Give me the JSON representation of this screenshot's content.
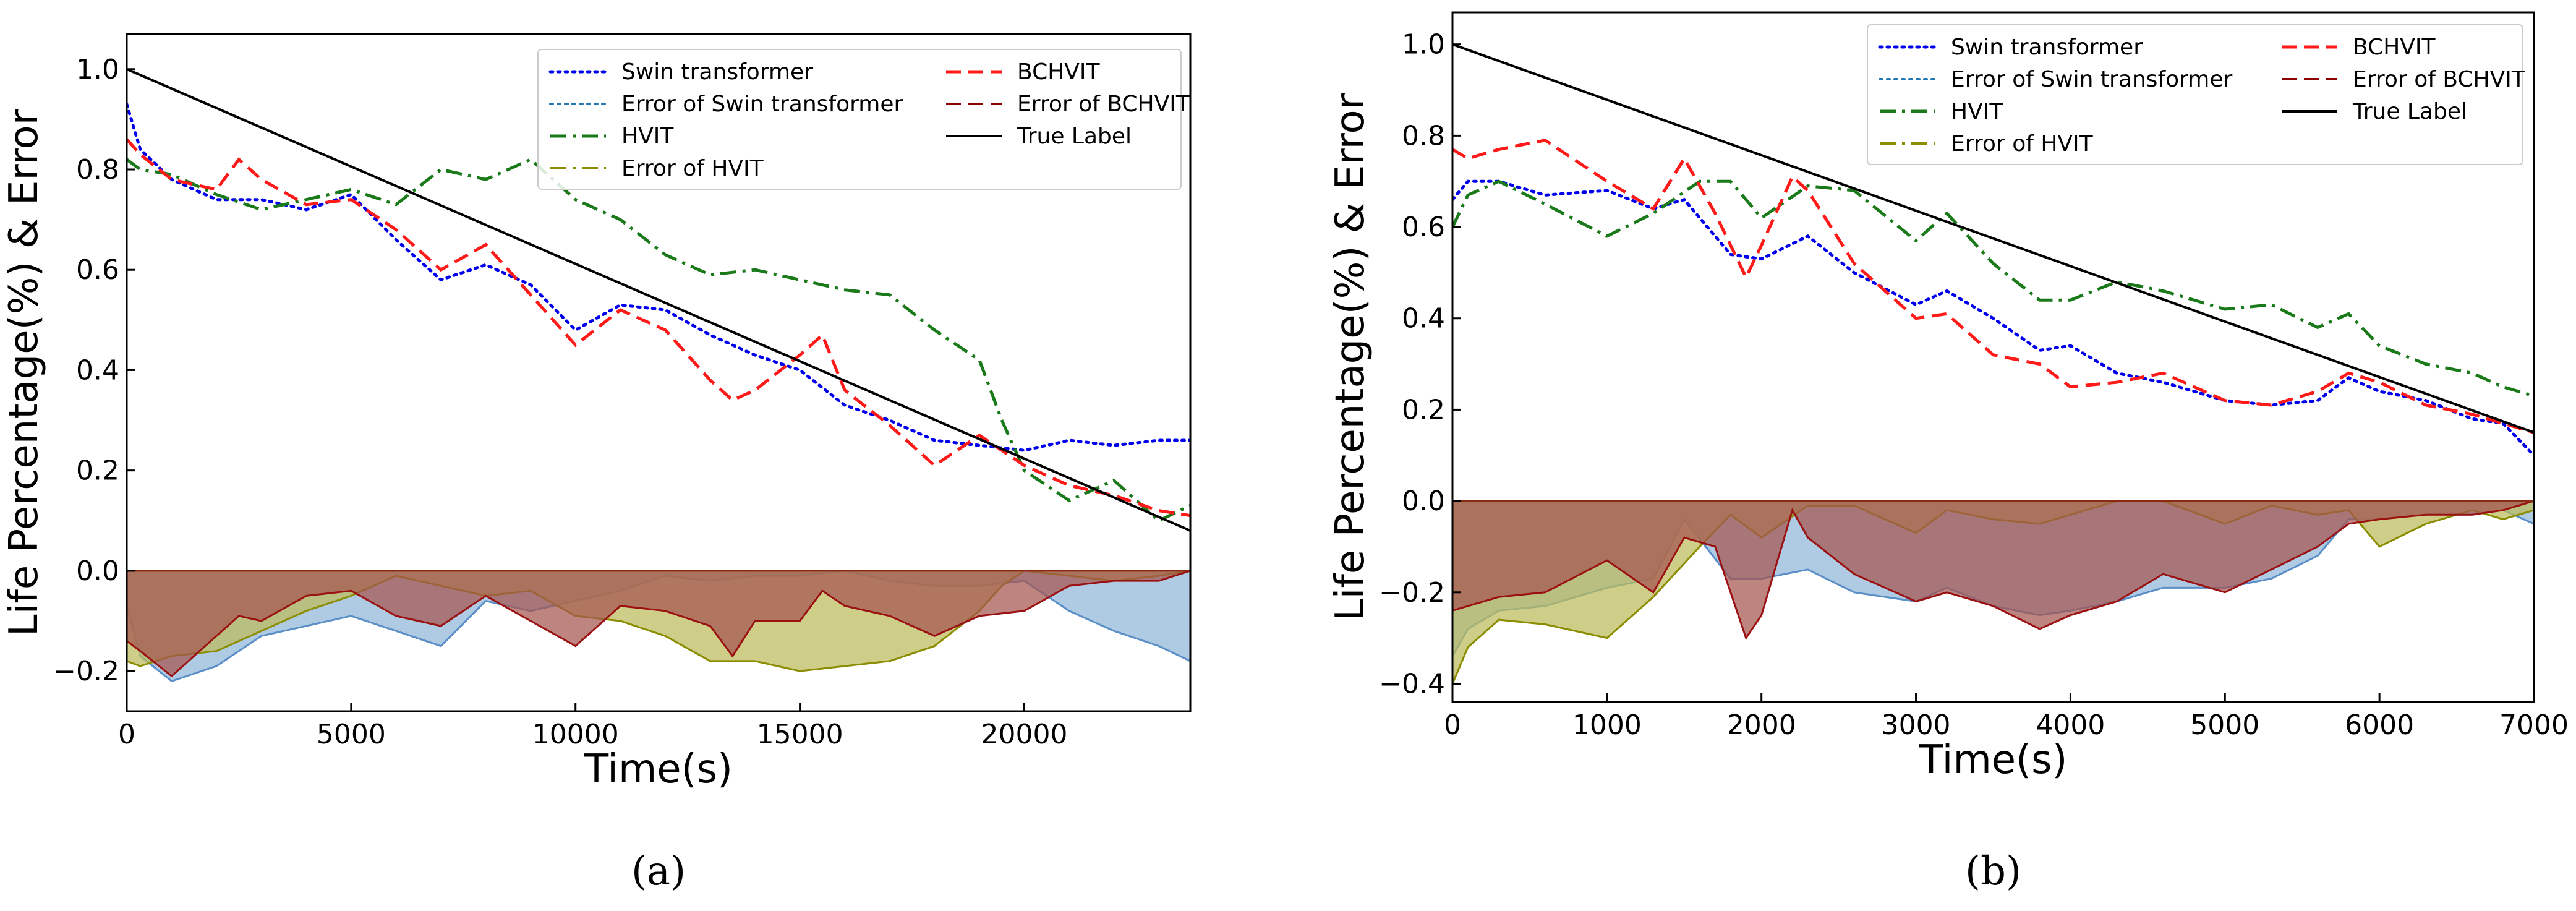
{
  "chart_data": [
    {
      "type": "line",
      "panel_label": "(a)",
      "xlabel": "Time(s)",
      "ylabel": "Life Percentage(%) & Error",
      "xlim": [
        0,
        23700
      ],
      "ylim": [
        -0.28,
        1.07
      ],
      "xticks": [
        0,
        5000,
        10000,
        15000,
        20000
      ],
      "yticks": [
        -0.2,
        0.0,
        0.2,
        0.4,
        0.6,
        0.8,
        1.0
      ],
      "xtick_labels": [
        "0",
        "5000",
        "10000",
        "15000",
        "20000"
      ],
      "ytick_labels": [
        "−0.2",
        "0.0",
        "0.2",
        "0.4",
        "0.6",
        "0.8",
        "1.0"
      ],
      "legend": [
        "Swin transformer",
        " Error of Swin transformer",
        "HVIT",
        " Error of HVIT",
        "BCHVIT",
        " Error of BCHVIT",
        "True Label"
      ],
      "series": [
        {
          "name": "Swin transformer",
          "color": "#0000ee",
          "style": "dotted",
          "x": [
            0,
            300,
            1000,
            2000,
            3000,
            4000,
            5000,
            6000,
            7000,
            8000,
            9000,
            10000,
            11000,
            12000,
            13000,
            14000,
            15000,
            16000,
            17000,
            18000,
            19000,
            20000,
            21000,
            22000,
            23000,
            23700
          ],
          "y": [
            0.93,
            0.84,
            0.78,
            0.74,
            0.74,
            0.72,
            0.75,
            0.66,
            0.58,
            0.61,
            0.57,
            0.48,
            0.53,
            0.52,
            0.47,
            0.43,
            0.4,
            0.33,
            0.3,
            0.26,
            0.25,
            0.24,
            0.26,
            0.25,
            0.26,
            0.26
          ]
        },
        {
          "name": "HVIT",
          "color": "#1a7a1a",
          "style": "dashdot",
          "x": [
            0,
            300,
            1000,
            2000,
            3000,
            4000,
            5000,
            6000,
            7000,
            8000,
            9000,
            10000,
            11000,
            12000,
            13000,
            14000,
            15000,
            16000,
            17000,
            18000,
            19000,
            19500,
            20000,
            21000,
            22000,
            23000,
            23700
          ],
          "y": [
            0.82,
            0.8,
            0.79,
            0.75,
            0.72,
            0.74,
            0.76,
            0.73,
            0.8,
            0.78,
            0.82,
            0.74,
            0.7,
            0.63,
            0.59,
            0.6,
            0.58,
            0.56,
            0.55,
            0.48,
            0.42,
            0.3,
            0.2,
            0.14,
            0.18,
            0.1,
            0.13
          ]
        },
        {
          "name": "BCHVIT",
          "color": "#ff1a1a",
          "style": "dashed",
          "x": [
            0,
            300,
            1000,
            2000,
            2500,
            3000,
            4000,
            5000,
            6000,
            7000,
            8000,
            9000,
            10000,
            11000,
            12000,
            13000,
            13500,
            14000,
            15000,
            15500,
            16000,
            17000,
            18000,
            19000,
            20000,
            21000,
            22000,
            23000,
            23700
          ],
          "y": [
            0.86,
            0.83,
            0.78,
            0.76,
            0.82,
            0.78,
            0.73,
            0.74,
            0.68,
            0.6,
            0.65,
            0.55,
            0.45,
            0.52,
            0.48,
            0.38,
            0.34,
            0.36,
            0.43,
            0.47,
            0.36,
            0.29,
            0.21,
            0.27,
            0.21,
            0.17,
            0.15,
            0.12,
            0.11
          ]
        },
        {
          "name": "True Label",
          "color": "#000000",
          "style": "solid",
          "x": [
            0,
            23700
          ],
          "y": [
            1.0,
            0.08
          ]
        }
      ],
      "error_areas": [
        {
          "name": " Error of Swin transformer",
          "line_color": "#5b8fc7",
          "fill": "#90b5d8",
          "x": [
            0,
            300,
            1000,
            2000,
            3000,
            4000,
            5000,
            6000,
            7000,
            8000,
            9000,
            10000,
            11000,
            12000,
            13000,
            14000,
            15000,
            16000,
            17000,
            18000,
            19000,
            20000,
            21000,
            22000,
            23000,
            23700
          ],
          "y": [
            -0.07,
            -0.17,
            -0.22,
            -0.19,
            -0.13,
            -0.11,
            -0.09,
            -0.12,
            -0.15,
            -0.06,
            -0.08,
            -0.06,
            -0.04,
            -0.01,
            -0.02,
            -0.01,
            -0.01,
            0.0,
            -0.02,
            -0.03,
            -0.03,
            -0.02,
            -0.08,
            -0.12,
            -0.15,
            -0.18
          ]
        },
        {
          "name": " Error of HVIT",
          "line_color": "#8c8c00",
          "fill": "#bdbb5a",
          "x": [
            0,
            300,
            1000,
            2000,
            3000,
            4000,
            5000,
            6000,
            7000,
            8000,
            9000,
            10000,
            11000,
            12000,
            13000,
            14000,
            15000,
            16000,
            17000,
            18000,
            19000,
            19500,
            20000,
            21000,
            22000,
            23000,
            23700
          ],
          "y": [
            -0.18,
            -0.19,
            -0.17,
            -0.16,
            -0.12,
            -0.08,
            -0.05,
            -0.01,
            -0.03,
            -0.05,
            -0.04,
            -0.09,
            -0.1,
            -0.13,
            -0.18,
            -0.18,
            -0.2,
            -0.19,
            -0.18,
            -0.15,
            -0.08,
            -0.03,
            0.0,
            -0.01,
            -0.02,
            -0.01,
            0.0
          ]
        },
        {
          "name": " Error of BCHVIT",
          "line_color": "#9b1111",
          "fill": "#a5554f",
          "x": [
            0,
            300,
            1000,
            2000,
            2500,
            3000,
            4000,
            5000,
            6000,
            7000,
            8000,
            9000,
            10000,
            11000,
            12000,
            13000,
            13500,
            14000,
            15000,
            15500,
            16000,
            17000,
            18000,
            19000,
            20000,
            21000,
            22000,
            23000,
            23700
          ],
          "y": [
            -0.14,
            -0.16,
            -0.21,
            -0.13,
            -0.09,
            -0.1,
            -0.05,
            -0.04,
            -0.09,
            -0.11,
            -0.05,
            -0.1,
            -0.15,
            -0.07,
            -0.08,
            -0.11,
            -0.17,
            -0.1,
            -0.1,
            -0.04,
            -0.07,
            -0.09,
            -0.13,
            -0.09,
            -0.08,
            -0.03,
            -0.02,
            -0.02,
            0.0
          ]
        }
      ]
    },
    {
      "type": "line",
      "panel_label": "(b)",
      "xlabel": "Time(s)",
      "ylabel": "Life Percentage(%) & Error",
      "xlim": [
        0,
        7000
      ],
      "ylim": [
        -0.44,
        1.07
      ],
      "xticks": [
        0,
        1000,
        2000,
        3000,
        4000,
        5000,
        6000,
        7000
      ],
      "yticks": [
        -0.4,
        -0.2,
        0.0,
        0.2,
        0.4,
        0.6,
        0.8,
        1.0
      ],
      "xtick_labels": [
        "0",
        "1000",
        "2000",
        "3000",
        "4000",
        "5000",
        "6000",
        "7000"
      ],
      "ytick_labels": [
        "−0.4",
        "−0.2",
        "0.0",
        "0.2",
        "0.4",
        "0.6",
        "0.8",
        "1.0"
      ],
      "legend": [
        "Swin transformer",
        " Error of Swin transformer",
        "HVIT",
        " Error of HVIT",
        "BCHVIT",
        " Error of BCHVIT",
        "True Label"
      ],
      "series": [
        {
          "name": "Swin transformer",
          "color": "#0000ee",
          "style": "dotted",
          "x": [
            0,
            100,
            300,
            600,
            1000,
            1300,
            1500,
            1800,
            2000,
            2300,
            2600,
            3000,
            3200,
            3500,
            3800,
            4000,
            4300,
            4600,
            5000,
            5300,
            5600,
            5800,
            6000,
            6300,
            6600,
            6800,
            7000
          ],
          "y": [
            0.66,
            0.7,
            0.7,
            0.67,
            0.68,
            0.64,
            0.66,
            0.54,
            0.53,
            0.58,
            0.5,
            0.43,
            0.46,
            0.4,
            0.33,
            0.34,
            0.28,
            0.26,
            0.22,
            0.21,
            0.22,
            0.27,
            0.24,
            0.22,
            0.18,
            0.17,
            0.1
          ]
        },
        {
          "name": "HVIT",
          "color": "#1a7a1a",
          "style": "dashdot",
          "x": [
            0,
            100,
            300,
            600,
            1000,
            1300,
            1600,
            1800,
            2000,
            2300,
            2600,
            3000,
            3200,
            3500,
            3800,
            4000,
            4300,
            4600,
            5000,
            5300,
            5600,
            5800,
            6000,
            6300,
            6600,
            6800,
            7000
          ],
          "y": [
            0.6,
            0.67,
            0.7,
            0.65,
            0.58,
            0.63,
            0.7,
            0.7,
            0.62,
            0.69,
            0.68,
            0.57,
            0.63,
            0.52,
            0.44,
            0.44,
            0.48,
            0.46,
            0.42,
            0.43,
            0.38,
            0.41,
            0.34,
            0.3,
            0.28,
            0.25,
            0.23
          ]
        },
        {
          "name": "BCHVIT",
          "color": "#ff1a1a",
          "style": "dashed",
          "x": [
            0,
            100,
            300,
            600,
            1000,
            1300,
            1500,
            1700,
            1900,
            2000,
            2200,
            2300,
            2600,
            3000,
            3200,
            3500,
            3800,
            4000,
            4300,
            4600,
            5000,
            5300,
            5600,
            5800,
            6000,
            6300,
            6600,
            6800,
            7000
          ],
          "y": [
            0.77,
            0.75,
            0.77,
            0.79,
            0.7,
            0.64,
            0.75,
            0.63,
            0.49,
            0.56,
            0.71,
            0.68,
            0.52,
            0.4,
            0.41,
            0.32,
            0.3,
            0.25,
            0.26,
            0.28,
            0.22,
            0.21,
            0.24,
            0.28,
            0.26,
            0.21,
            0.19,
            0.17,
            0.15
          ]
        },
        {
          "name": "True Label",
          "color": "#000000",
          "style": "solid",
          "x": [
            0,
            7000
          ],
          "y": [
            1.0,
            0.15
          ]
        }
      ],
      "error_areas": [
        {
          "name": " Error of Swin transformer",
          "line_color": "#5b8fc7",
          "fill": "#90b5d8",
          "x": [
            0,
            100,
            300,
            600,
            1000,
            1300,
            1500,
            1800,
            2000,
            2300,
            2600,
            3000,
            3200,
            3500,
            3800,
            4000,
            4300,
            4600,
            5000,
            5300,
            5600,
            5800,
            6000,
            6300,
            6600,
            6800,
            7000
          ],
          "y": [
            -0.34,
            -0.28,
            -0.24,
            -0.23,
            -0.19,
            -0.17,
            -0.04,
            -0.17,
            -0.17,
            -0.15,
            -0.2,
            -0.22,
            -0.19,
            -0.23,
            -0.25,
            -0.24,
            -0.22,
            -0.19,
            -0.19,
            -0.17,
            -0.12,
            -0.04,
            -0.04,
            -0.03,
            -0.03,
            -0.02,
            -0.05
          ]
        },
        {
          "name": " Error of HVIT",
          "line_color": "#8c8c00",
          "fill": "#bdbb5a",
          "x": [
            0,
            100,
            300,
            600,
            1000,
            1300,
            1600,
            1800,
            2000,
            2300,
            2600,
            3000,
            3200,
            3500,
            3800,
            4000,
            4300,
            4600,
            5000,
            5300,
            5600,
            5800,
            6000,
            6300,
            6600,
            6800,
            7000
          ],
          "y": [
            -0.4,
            -0.32,
            -0.26,
            -0.27,
            -0.3,
            -0.21,
            -0.1,
            -0.03,
            -0.08,
            -0.01,
            -0.01,
            -0.07,
            -0.02,
            -0.04,
            -0.05,
            -0.03,
            0.0,
            0.0,
            -0.05,
            -0.01,
            -0.03,
            -0.02,
            -0.1,
            -0.05,
            -0.02,
            -0.04,
            -0.02
          ]
        },
        {
          "name": " Error of BCHVIT",
          "line_color": "#9b1111",
          "fill": "#a5554f",
          "x": [
            0,
            100,
            300,
            600,
            1000,
            1300,
            1500,
            1700,
            1900,
            2000,
            2200,
            2300,
            2600,
            3000,
            3200,
            3500,
            3800,
            4000,
            4300,
            4600,
            5000,
            5300,
            5600,
            5800,
            6000,
            6300,
            6600,
            6800,
            7000
          ],
          "y": [
            -0.24,
            -0.23,
            -0.21,
            -0.2,
            -0.13,
            -0.2,
            -0.08,
            -0.1,
            -0.3,
            -0.25,
            -0.02,
            -0.08,
            -0.16,
            -0.22,
            -0.2,
            -0.23,
            -0.28,
            -0.25,
            -0.22,
            -0.16,
            -0.2,
            -0.15,
            -0.1,
            -0.05,
            -0.04,
            -0.03,
            -0.03,
            -0.02,
            0.0
          ]
        }
      ]
    }
  ]
}
